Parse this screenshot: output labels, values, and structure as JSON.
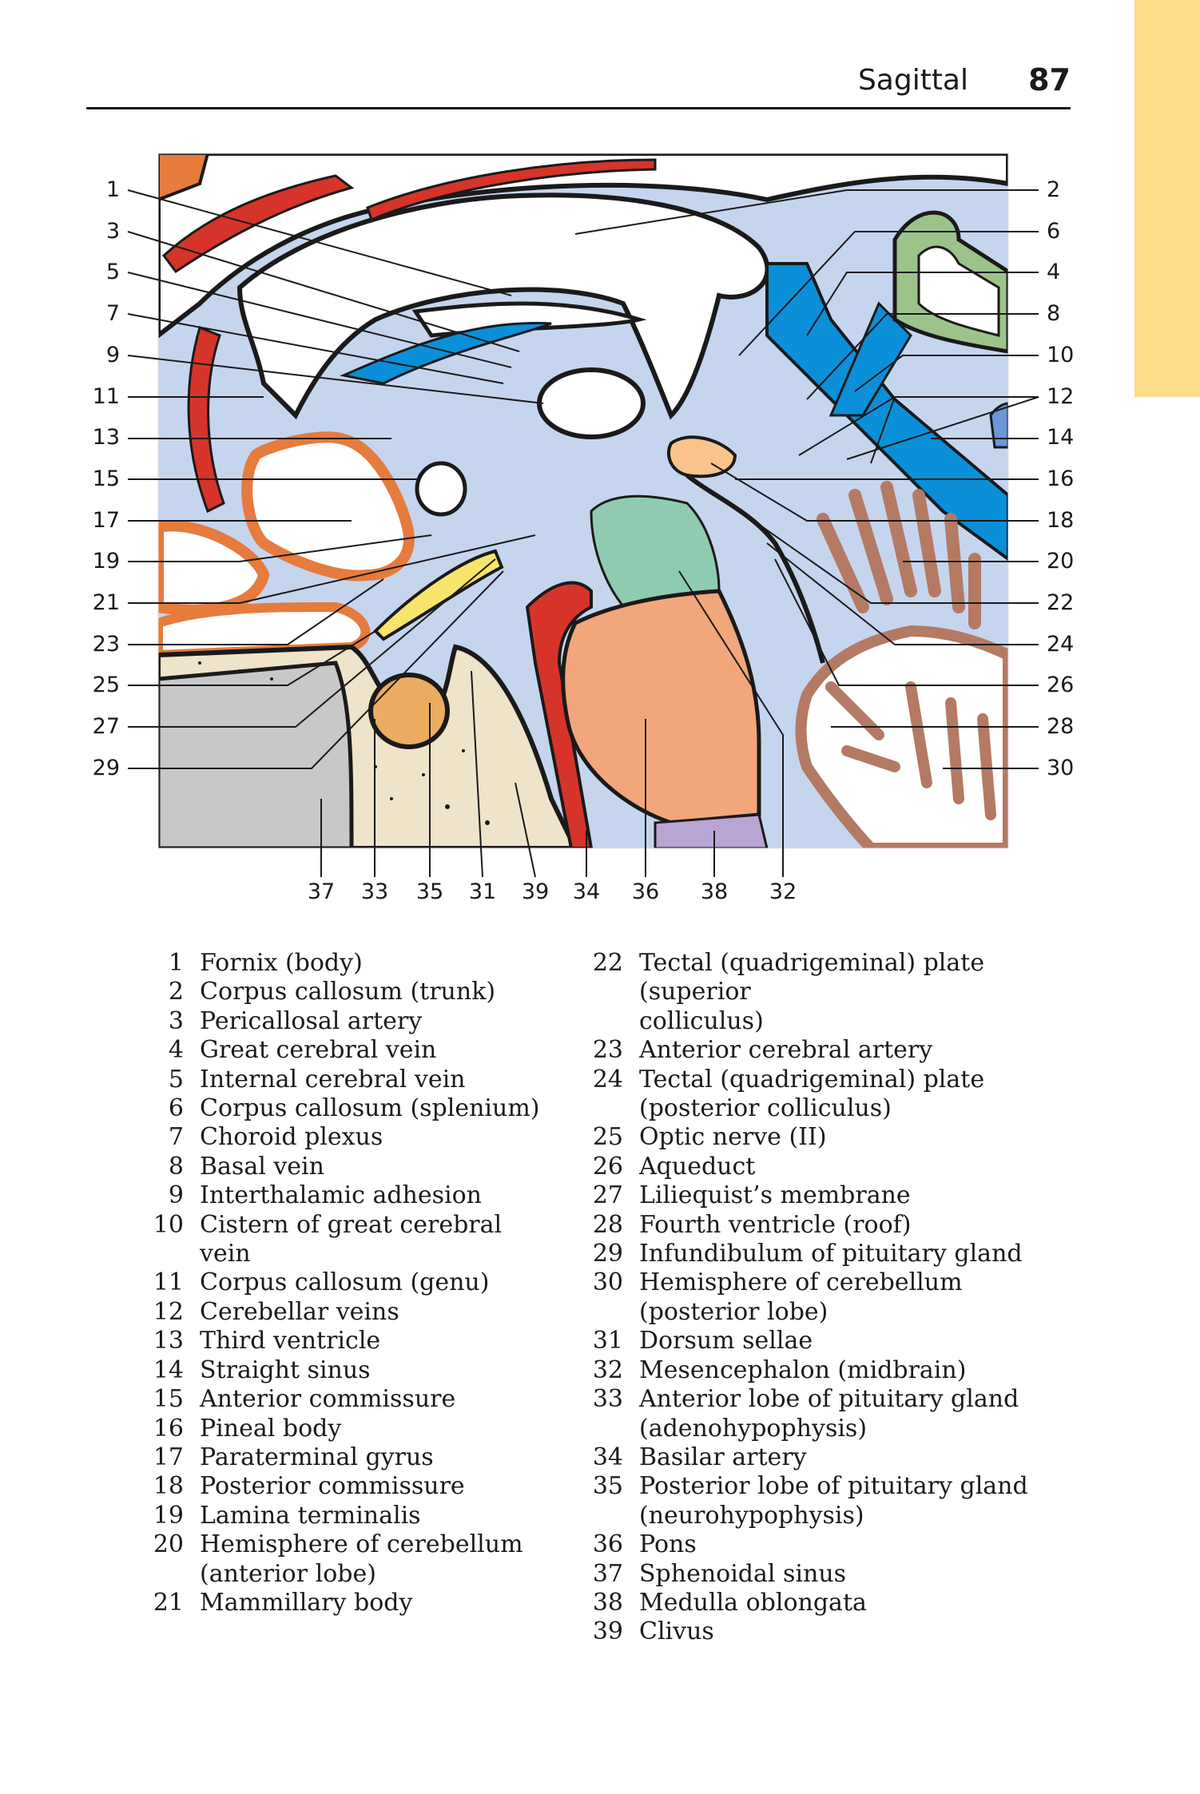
{
  "header": {
    "section": "Sagittal",
    "page_number": "87"
  },
  "diagram": {
    "left_labels": [
      "1",
      "3",
      "5",
      "7",
      "9",
      "11",
      "13",
      "15",
      "17",
      "19",
      "21",
      "23",
      "25",
      "27",
      "29"
    ],
    "right_labels": [
      "2",
      "6",
      "4",
      "8",
      "10",
      "12",
      "14",
      "16",
      "18",
      "20",
      "22",
      "24",
      "26",
      "28",
      "30"
    ],
    "bottom_labels": [
      "37",
      "33",
      "35",
      "31",
      "39",
      "34",
      "36",
      "38",
      "32"
    ],
    "colors": {
      "csf": "#c6d5ee",
      "artery": "#d6342a",
      "vein": "#0b8fd8",
      "outline": "#1a1a1a",
      "gyrus": "#e57b3c",
      "cerebellum": "#b47a63",
      "pons": "#f2a67b",
      "tectum": "#8fcbb0",
      "medulla": "#b9a5d3",
      "bone": "#efe3c9",
      "sinus_cavity": "#c8c8c8",
      "pineal": "#f8c48c",
      "pituitary": "#ebac62",
      "optic": "#f7e46b",
      "green_vein": "#9cc48a"
    }
  },
  "legend": {
    "left": [
      {
        "num": "1",
        "text": "Fornix (body)"
      },
      {
        "num": "2",
        "text": "Corpus callosum (trunk)"
      },
      {
        "num": "3",
        "text": "Pericallosal artery"
      },
      {
        "num": "4",
        "text": "Great cerebral vein"
      },
      {
        "num": "5",
        "text": "Internal cerebral vein"
      },
      {
        "num": "6",
        "text": "Corpus callosum (splenium)"
      },
      {
        "num": "7",
        "text": "Choroid plexus"
      },
      {
        "num": "8",
        "text": "Basal vein"
      },
      {
        "num": "9",
        "text": "Interthalamic adhesion"
      },
      {
        "num": "10",
        "text": "Cistern of great cerebral vein"
      },
      {
        "num": "11",
        "text": "Corpus callosum (genu)"
      },
      {
        "num": "12",
        "text": "Cerebellar veins"
      },
      {
        "num": "13",
        "text": "Third ventricle"
      },
      {
        "num": "14",
        "text": "Straight sinus"
      },
      {
        "num": "15",
        "text": "Anterior commissure"
      },
      {
        "num": "16",
        "text": "Pineal body"
      },
      {
        "num": "17",
        "text": "Paraterminal gyrus"
      },
      {
        "num": "18",
        "text": "Posterior commissure"
      },
      {
        "num": "19",
        "text": "Lamina terminalis"
      },
      {
        "num": "20",
        "text": "Hemisphere of cerebellum",
        "text2": "(anterior lobe)"
      },
      {
        "num": "21",
        "text": "Mammillary body"
      }
    ],
    "right": [
      {
        "num": "22",
        "text": "Tectal (quadrigeminal) plate (superior",
        "text2": "colliculus)"
      },
      {
        "num": "23",
        "text": "Anterior cerebral artery"
      },
      {
        "num": "24",
        "text": "Tectal (quadrigeminal) plate",
        "text2": "(posterior colliculus)"
      },
      {
        "num": "25",
        "text": "Optic nerve (II)"
      },
      {
        "num": "26",
        "text": "Aqueduct"
      },
      {
        "num": "27",
        "text": "Liliequist’s membrane"
      },
      {
        "num": "28",
        "text": "Fourth ventricle (roof)"
      },
      {
        "num": "29",
        "text": "Infundibulum of pituitary gland"
      },
      {
        "num": "30",
        "text": "Hemisphere of cerebellum",
        "text2": "(posterior lobe)"
      },
      {
        "num": "31",
        "text": "Dorsum sellae"
      },
      {
        "num": "32",
        "text": "Mesencephalon (midbrain)"
      },
      {
        "num": "33",
        "text": "Anterior lobe of pituitary gland",
        "text2": "(adenohypophysis)"
      },
      {
        "num": "34",
        "text": "Basilar artery"
      },
      {
        "num": "35",
        "text": "Posterior lobe of pituitary gland",
        "text2": "(neurohypophysis)"
      },
      {
        "num": "36",
        "text": "Pons"
      },
      {
        "num": "37",
        "text": "Sphenoidal sinus"
      },
      {
        "num": "38",
        "text": "Medulla oblongata"
      },
      {
        "num": "39",
        "text": "Clivus"
      }
    ]
  }
}
